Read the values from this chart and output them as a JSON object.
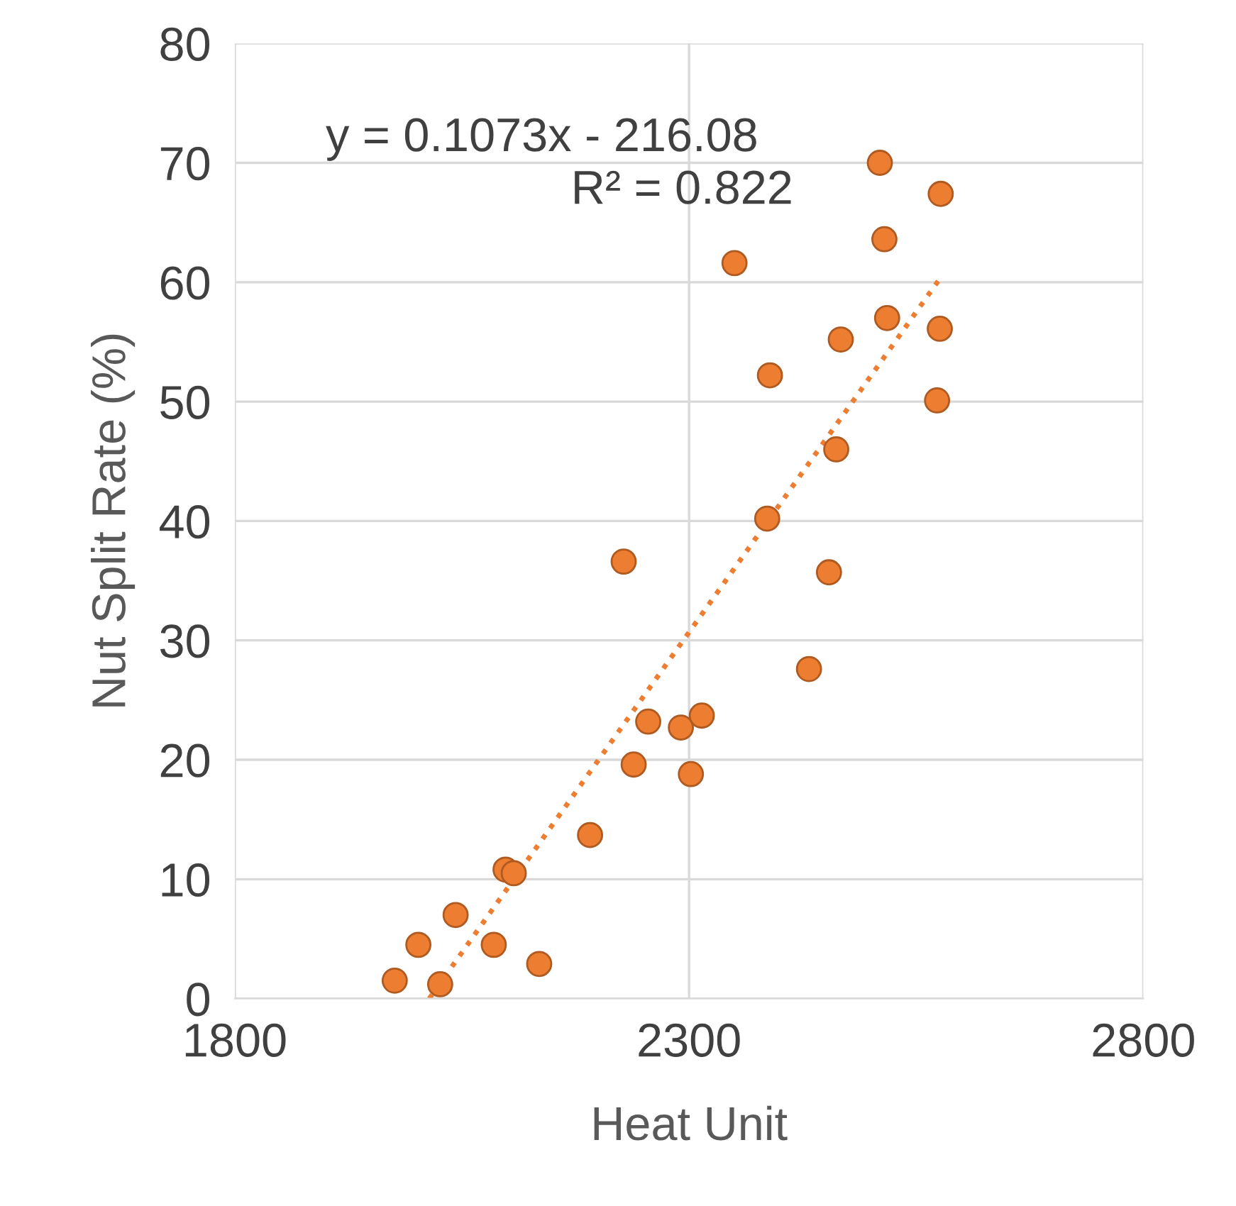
{
  "chart_data": {
    "type": "scatter",
    "xlabel": "Heat Unit",
    "ylabel": "Nut Split Rate (%)",
    "xlim": [
      1800,
      2800
    ],
    "xticks": [
      1800,
      2300,
      2800
    ],
    "ylim": [
      0,
      80
    ],
    "yticks": [
      0,
      10,
      20,
      30,
      40,
      50,
      60,
      70,
      80
    ],
    "grid": true,
    "legend": false,
    "annotations": [
      "y = 0.1073x - 216.08",
      "R² = 0.822"
    ],
    "series": [
      {
        "color": "#ed7d31",
        "marker": "circle",
        "x": [
          1976,
          2002,
          2026,
          2043,
          2085,
          2098,
          2107,
          2135,
          2191,
          2228,
          2239,
          2255,
          2291,
          2302,
          2314,
          2350,
          2389,
          2386,
          2432,
          2454,
          2462,
          2467,
          2510,
          2515,
          2518,
          2573,
          2576,
          2577
        ],
        "values": [
          1.5,
          4.5,
          1.2,
          7.0,
          4.5,
          10.8,
          10.5,
          2.9,
          13.7,
          36.6,
          19.6,
          23.2,
          22.7,
          18.8,
          23.7,
          61.6,
          52.2,
          40.2,
          27.6,
          35.7,
          46.0,
          55.2,
          70.0,
          63.6,
          57.0,
          50.1,
          56.1,
          67.4
        ]
      },
      {
        "type": "line",
        "color": "#ed7d31",
        "line_style": "dotted",
        "x": [
          2014,
          2577
        ],
        "values": [
          0,
          60.4
        ]
      }
    ]
  }
}
